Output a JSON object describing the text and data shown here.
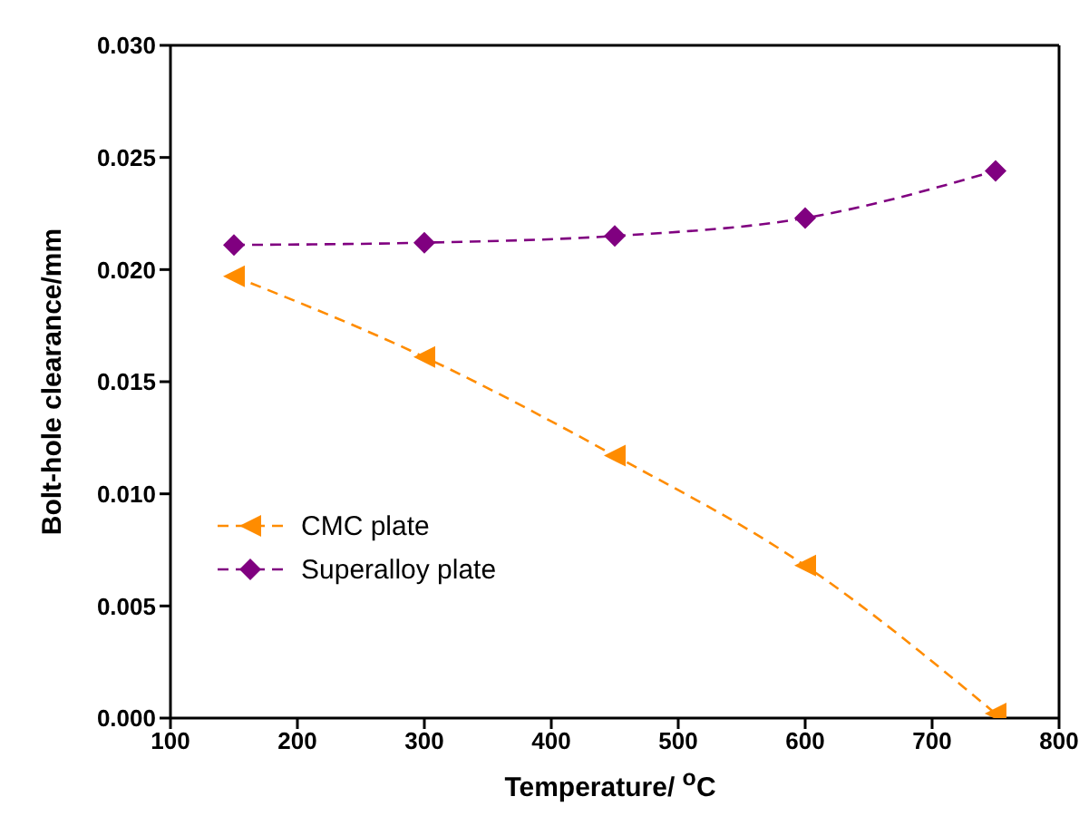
{
  "chart_data": {
    "type": "line",
    "xlabel": "Temperature/ $^{o}$C",
    "ylabel": "Bolt-hole clearance/mm",
    "x": [
      150,
      300,
      450,
      600,
      750
    ],
    "series": [
      {
        "name": "CMC plate",
        "color": "#ff8c00",
        "marker": "triangle",
        "values": [
          0.0197,
          0.0161,
          0.0117,
          0.0068,
          0.0002
        ]
      },
      {
        "name": "Superalloy plate",
        "color": "#800080",
        "marker": "diamond",
        "values": [
          0.0211,
          0.0212,
          0.0215,
          0.0223,
          0.0244
        ]
      }
    ],
    "xlim": [
      100,
      800
    ],
    "xticks": [
      100,
      200,
      300,
      400,
      500,
      600,
      700,
      800
    ],
    "ylim": [
      0,
      0.03
    ],
    "yticks": [
      {
        "value": 0,
        "label": "0.000"
      },
      {
        "value": 0.005,
        "label": "0.005"
      },
      {
        "value": 0.01,
        "label": "0.010"
      },
      {
        "value": 0.015,
        "label": "0.015"
      },
      {
        "value": 0.02,
        "label": "0.020"
      },
      {
        "value": 0.025,
        "label": "0.025"
      },
      {
        "value": 0.03,
        "label": "0.030"
      }
    ],
    "line_style": "dashed",
    "grid": false,
    "legend": "bottom left"
  }
}
